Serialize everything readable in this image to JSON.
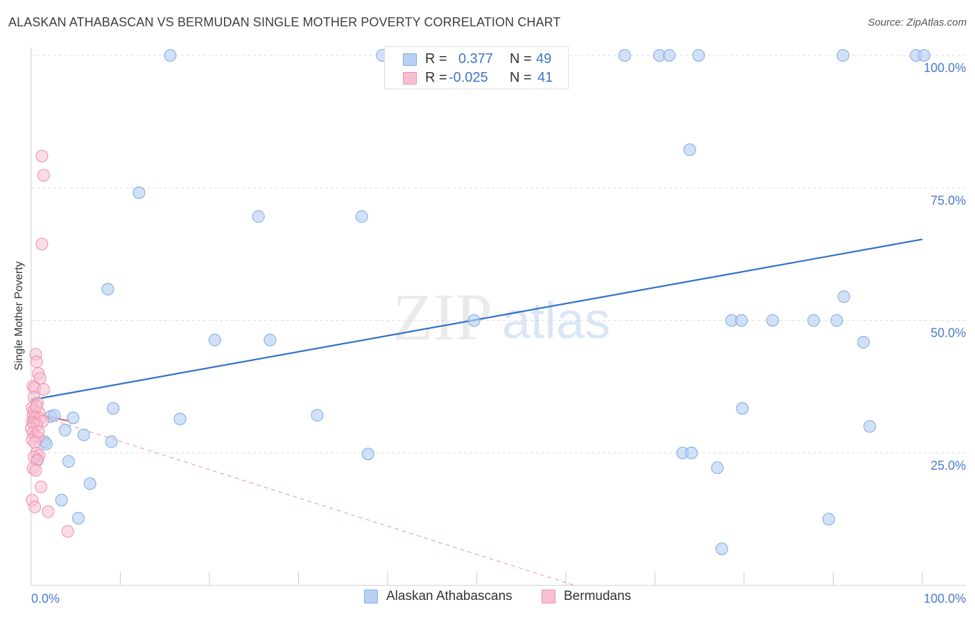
{
  "title": "ALASKAN ATHABASCAN VS BERMUDAN SINGLE MOTHER POVERTY CORRELATION CHART",
  "source": "Source: ZipAtlas.com",
  "watermark": {
    "zip": "ZIP",
    "atlas": "atlas"
  },
  "legend": {
    "rows": [
      {
        "r_label": "R =",
        "r_value": "0.377",
        "n_label": "N =",
        "n_value": "49"
      },
      {
        "r_label": "R =",
        "r_value": "-0.025",
        "n_label": "N =",
        "n_value": "41"
      }
    ]
  },
  "colors": {
    "blue_fill": "#b8d1f3",
    "blue_stroke": "#7ea6e0",
    "blue_line": "#2f6fca",
    "pink_fill": "#f7bfd0",
    "pink_stroke": "#ec8eaa",
    "pink_line": "#e0608a",
    "tick_text": "#4a7bd0",
    "grid": "#dddddd"
  },
  "chart_data": {
    "type": "scatter",
    "title": "ALASKAN ATHABASCAN VS BERMUDAN SINGLE MOTHER POVERTY CORRELATION CHART",
    "xlabel": "",
    "ylabel": "Single Mother Poverty",
    "xlim": [
      0,
      100
    ],
    "ylim": [
      0,
      100
    ],
    "x_tick_labels": [
      "0.0%",
      "100.0%"
    ],
    "y_ticks": [
      25,
      50,
      75,
      100
    ],
    "y_tick_labels": [
      "25.0%",
      "50.0%",
      "75.0%",
      "100.0%"
    ],
    "grid": true,
    "series": [
      {
        "name": "Alaskan Athabascans",
        "r": 0.377,
        "n": 49,
        "trend": {
          "x": [
            0,
            100
          ],
          "y": [
            35.0,
            65.3
          ]
        },
        "points": [
          [
            15.6,
            100
          ],
          [
            39.4,
            100
          ],
          [
            66.6,
            100
          ],
          [
            70.5,
            100
          ],
          [
            71.6,
            100
          ],
          [
            74.9,
            100
          ],
          [
            91.1,
            100
          ],
          [
            99.3,
            100
          ],
          [
            100.2,
            100
          ],
          [
            73.9,
            82.2
          ],
          [
            12.1,
            74.1
          ],
          [
            25.5,
            69.6
          ],
          [
            37.1,
            69.6
          ],
          [
            8.6,
            55.9
          ],
          [
            91.2,
            54.5
          ],
          [
            49.7,
            50.0
          ],
          [
            78.6,
            50.0
          ],
          [
            79.7,
            50.0
          ],
          [
            83.2,
            50.0
          ],
          [
            87.8,
            50.0
          ],
          [
            90.4,
            50.0
          ],
          [
            20.6,
            46.3
          ],
          [
            26.8,
            46.3
          ],
          [
            93.4,
            45.9
          ],
          [
            9.2,
            33.4
          ],
          [
            79.8,
            33.4
          ],
          [
            2.2,
            31.9
          ],
          [
            2.6,
            32.1
          ],
          [
            4.7,
            31.6
          ],
          [
            16.7,
            31.4
          ],
          [
            32.1,
            32.1
          ],
          [
            0.3,
            31.4
          ],
          [
            3.8,
            29.3
          ],
          [
            5.9,
            28.4
          ],
          [
            1.5,
            27.1
          ],
          [
            1.7,
            26.7
          ],
          [
            9.0,
            27.1
          ],
          [
            94.1,
            30.0
          ],
          [
            0.7,
            23.8
          ],
          [
            4.2,
            23.4
          ],
          [
            37.8,
            24.8
          ],
          [
            73.1,
            25.0
          ],
          [
            74.1,
            25.0
          ],
          [
            77.0,
            22.2
          ],
          [
            6.6,
            19.2
          ],
          [
            3.4,
            16.1
          ],
          [
            5.3,
            12.7
          ],
          [
            89.5,
            12.5
          ],
          [
            77.5,
            6.9
          ]
        ]
      },
      {
        "name": "Bermudans",
        "r": -0.025,
        "n": 41,
        "trend": {
          "x": [
            0,
            4.3
          ],
          "y": [
            32.5,
            31.0
          ]
        },
        "trend_extended": {
          "x": [
            0,
            61.0
          ],
          "y": [
            32.5,
            0
          ]
        },
        "points": [
          [
            1.2,
            81.0
          ],
          [
            1.4,
            77.4
          ],
          [
            1.2,
            64.4
          ],
          [
            0.5,
            43.6
          ],
          [
            0.6,
            42.2
          ],
          [
            0.8,
            40.0
          ],
          [
            1.0,
            39.1
          ],
          [
            0.2,
            37.6
          ],
          [
            0.4,
            37.3
          ],
          [
            1.4,
            37.0
          ],
          [
            0.3,
            35.5
          ],
          [
            0.7,
            34.4
          ],
          [
            0.1,
            33.5
          ],
          [
            0.3,
            33.0
          ],
          [
            0.9,
            32.6
          ],
          [
            0.2,
            32.0
          ],
          [
            0.4,
            31.7
          ],
          [
            1.0,
            31.5
          ],
          [
            1.3,
            31.0
          ],
          [
            0.1,
            30.8
          ],
          [
            0.3,
            30.5
          ],
          [
            0.6,
            30.3
          ],
          [
            0.0,
            29.6
          ],
          [
            0.2,
            28.8
          ],
          [
            0.5,
            28.3
          ],
          [
            0.8,
            27.9
          ],
          [
            0.1,
            27.5
          ],
          [
            0.4,
            27.0
          ],
          [
            0.6,
            25.0
          ],
          [
            0.9,
            24.6
          ],
          [
            0.3,
            24.2
          ],
          [
            0.7,
            23.6
          ],
          [
            0.2,
            22.1
          ],
          [
            0.5,
            21.7
          ],
          [
            1.1,
            18.6
          ],
          [
            0.1,
            16.1
          ],
          [
            0.4,
            14.8
          ],
          [
            1.9,
            13.9
          ],
          [
            4.1,
            10.2
          ],
          [
            0.8,
            29.0
          ],
          [
            0.6,
            33.8
          ]
        ]
      }
    ]
  },
  "bottom_legend": [
    {
      "label": "Alaskan Athabascans"
    },
    {
      "label": "Bermudans"
    }
  ]
}
